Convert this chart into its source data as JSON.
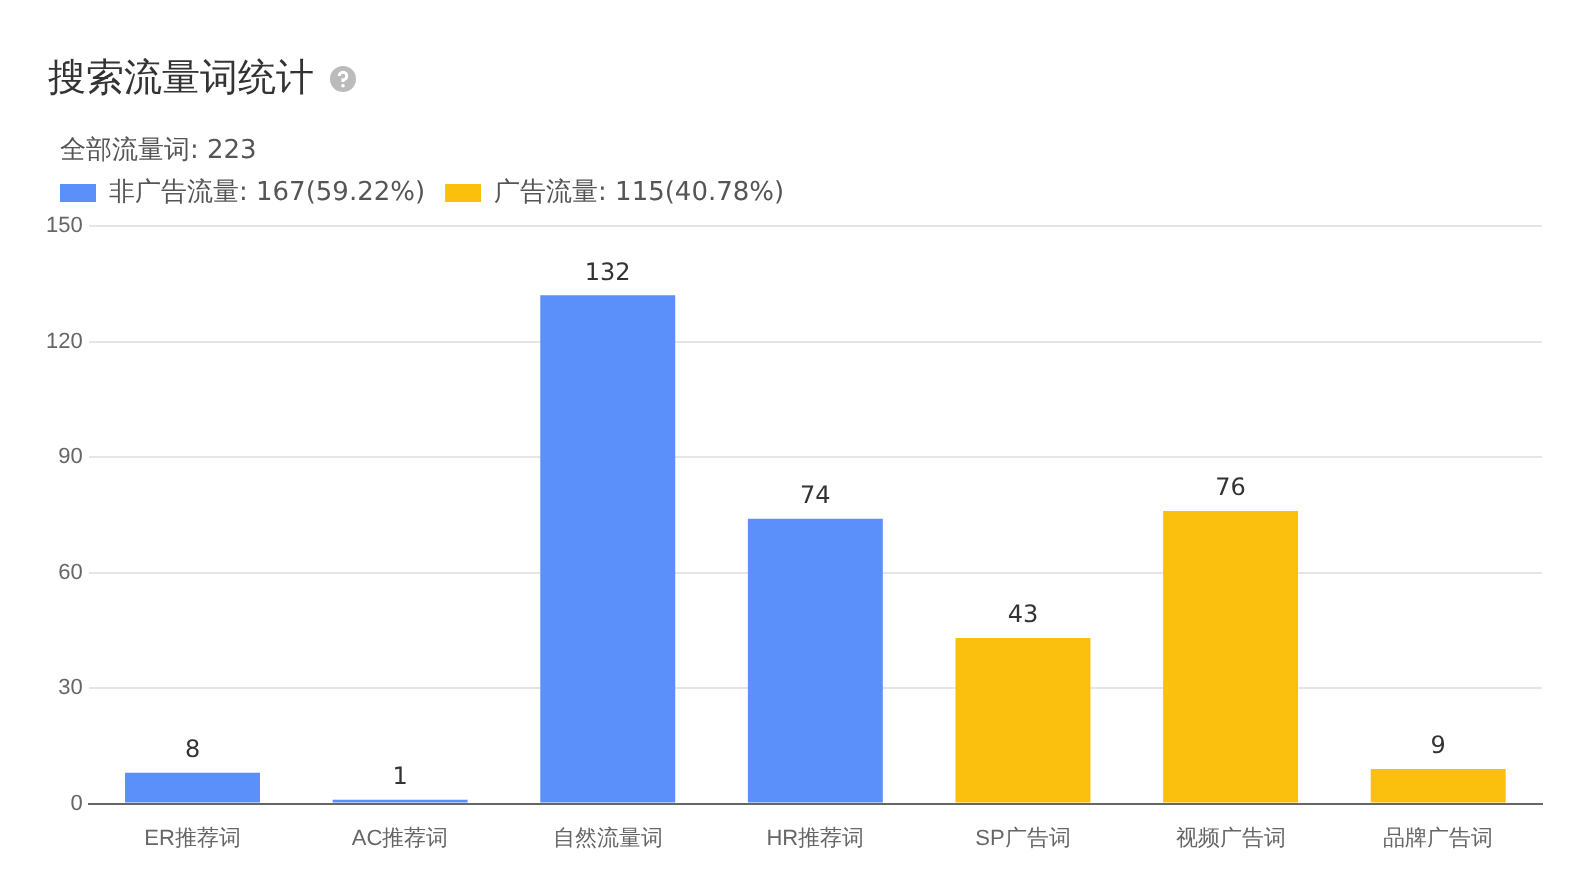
{
  "chart_data": {
    "type": "bar",
    "title": "搜索流量词统计",
    "subtitle": "全部流量词: 223",
    "categories": [
      "ER推荐词",
      "AC推荐词",
      "自然流量词",
      "HR推荐词",
      "SP广告词",
      "视频广告词",
      "品牌广告词"
    ],
    "series": [
      {
        "name": "非广告流量: 167(59.22%)",
        "color": "#5b8ff9",
        "values": [
          8,
          1,
          132,
          74,
          null,
          null,
          null
        ]
      },
      {
        "name": "广告流量: 115(40.78%)",
        "color": "#fbc00e",
        "values": [
          null,
          null,
          null,
          null,
          43,
          76,
          9
        ]
      }
    ],
    "ylim": [
      0,
      150
    ],
    "yticks": [
      0,
      30,
      60,
      90,
      120,
      150
    ],
    "grid": "y",
    "legend": "top left",
    "data_labels": true
  }
}
